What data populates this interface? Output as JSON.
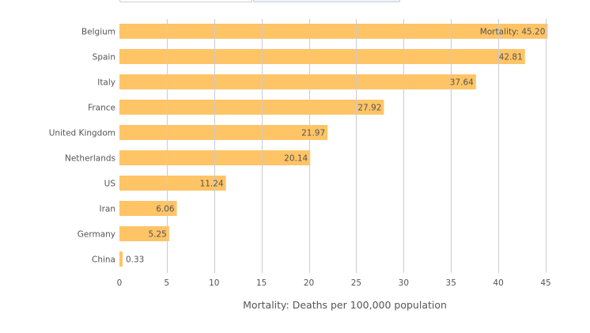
{
  "controls": [
    {
      "label": "",
      "state": "default"
    },
    {
      "label": "",
      "state": "selected"
    }
  ],
  "colors": {
    "bar": "#ffc466",
    "grid": "#cccccc",
    "text": "#555555"
  },
  "chart_data": {
    "type": "bar",
    "orientation": "horizontal",
    "categories": [
      "Belgium",
      "Spain",
      "Italy",
      "France",
      "United Kingdom",
      "Netherlands",
      "US",
      "Iran",
      "Germany",
      "China"
    ],
    "values": [
      45.2,
      42.81,
      37.64,
      27.92,
      21.97,
      20.14,
      11.24,
      6.06,
      5.25,
      0.33
    ],
    "value_labels": [
      "Mortality: 45.20",
      "42.81",
      "37.64",
      "27.92",
      "21.97",
      "20.14",
      "11.24",
      "6.06",
      "5.25",
      "0.33"
    ],
    "title": "",
    "xlabel": "Mortality: Deaths per 100,000 population",
    "ylabel": "",
    "xlim": [
      0,
      45
    ],
    "xticks": [
      0,
      5,
      10,
      15,
      20,
      25,
      30,
      35,
      40,
      45
    ],
    "grid": true,
    "legend": "none"
  }
}
